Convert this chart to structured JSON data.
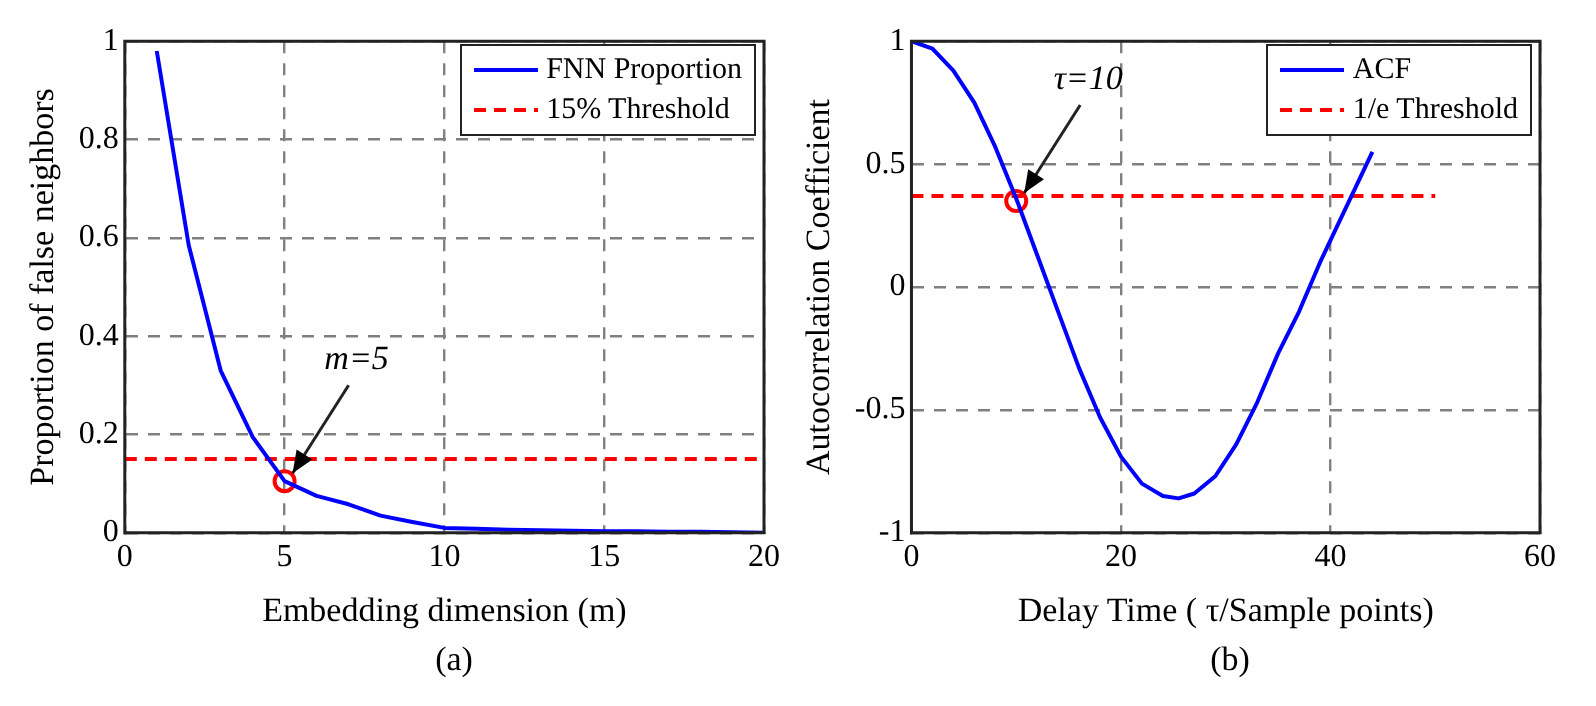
{
  "chart_data": [
    {
      "type": "line",
      "xlabel": "Embedding dimension (m)",
      "ylabel": "Proportion of false neighbors",
      "xlim": [
        0,
        20
      ],
      "ylim": [
        0,
        1
      ],
      "xticks": [
        0,
        5,
        10,
        15,
        20
      ],
      "yticks": [
        0,
        0.2,
        0.4,
        0.6,
        0.8,
        1
      ],
      "grid": true,
      "legend": "top right",
      "annotations": [
        {
          "text": "m=5",
          "x": 5,
          "y": 0.105
        },
        "(a)"
      ],
      "series": [
        {
          "name": "FNN Proportion",
          "color": "#0000ff",
          "line_style": "solid",
          "marker": "none",
          "x": [
            1,
            2,
            3,
            4,
            5,
            6,
            7,
            8,
            9,
            10,
            11,
            12,
            13,
            14,
            15,
            16,
            17,
            18,
            19,
            20
          ],
          "values": [
            0.98,
            0.585,
            0.33,
            0.195,
            0.105,
            0.075,
            0.058,
            0.035,
            0.022,
            0.01,
            0.008,
            0.006,
            0.005,
            0.004,
            0.003,
            0.003,
            0.002,
            0.002,
            0.001,
            0
          ]
        },
        {
          "name": "15% Threshold",
          "color": "#ff0000",
          "line_style": "dashed",
          "marker": "none",
          "x": [
            0,
            20
          ],
          "values": [
            0.15,
            0.15
          ]
        },
        {
          "type": "scatter",
          "color": "#ff0000",
          "marker": "circle",
          "x": [
            5
          ],
          "values": [
            0.105
          ]
        }
      ]
    },
    {
      "type": "line",
      "xlabel": "Delay Time ( τ/Sample points)",
      "ylabel": "Autocorrelation Coefficient",
      "xlim": [
        0,
        60
      ],
      "ylim": [
        -1,
        1
      ],
      "xticks": [
        0,
        20,
        40,
        60
      ],
      "yticks": [
        -1,
        -0.5,
        0,
        0.5,
        1
      ],
      "grid": true,
      "legend": "top right",
      "annotations": [
        {
          "text": "τ=10",
          "x": 10,
          "y": 0.35
        },
        "(b)"
      ],
      "series": [
        {
          "name": "ACF",
          "color": "#0000ff",
          "line_style": "solid",
          "marker": "none",
          "x": [
            0,
            2,
            4,
            6,
            8,
            10,
            12,
            14,
            16,
            18,
            20,
            22,
            24,
            25.5,
            27,
            29,
            31,
            33,
            35,
            37,
            39,
            41,
            42,
            44
          ],
          "values": [
            1,
            0.97,
            0.88,
            0.75,
            0.57,
            0.36,
            0.13,
            -0.1,
            -0.33,
            -0.53,
            -0.69,
            -0.8,
            -0.85,
            -0.86,
            -0.84,
            -0.77,
            -0.64,
            -0.47,
            -0.27,
            -0.1,
            0.1,
            0.28,
            0.37,
            0.55
          ]
        },
        {
          "name": "1/e Threshold",
          "color": "#ff0000",
          "line_style": "dashed",
          "marker": "none",
          "x": [
            0,
            50
          ],
          "values": [
            0.37,
            0.37
          ]
        },
        {
          "type": "scatter",
          "color": "#ff0000",
          "marker": "circle",
          "x": [
            10
          ],
          "values": [
            0.35
          ]
        }
      ]
    }
  ]
}
